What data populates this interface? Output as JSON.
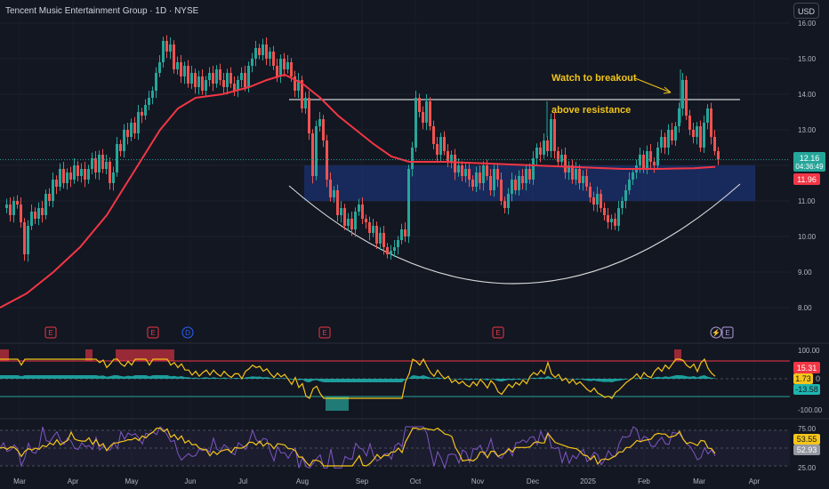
{
  "header": {
    "title": "Tencent Music Entertainment Group · 1D · NYSE",
    "currency_label": "USD"
  },
  "annotation": {
    "line1": "Watch to breakout",
    "line2": "above resistance"
  },
  "colors": {
    "background": "#131722",
    "up": "#26a69a",
    "down": "#ef5350",
    "ma": "#f23645",
    "zone": "#1e3a8a",
    "annotation": "#f0c419",
    "histogram": "#1fb5b0",
    "stoch_k": "#f5c518",
    "rsi": "#7e57c2"
  },
  "price_badges": {
    "last_price": "12.16",
    "countdown": "04:36:49",
    "ma_value": "11.96"
  },
  "oscillator": {
    "upper_level": "100.00",
    "lower_level": "-100.00",
    "badges": [
      "15.31",
      "1.73",
      "-13.58"
    ],
    "badges_axis_suffix": "0"
  },
  "rsi": {
    "upper_tick": "75.00",
    "lower_tick": "25.00",
    "badges": [
      "53.55",
      "52.93"
    ]
  },
  "chart_data": {
    "type": "candlestick",
    "title": "Tencent Music Entertainment Group · 1D · NYSE",
    "y_ticks": [
      "16.00",
      "15.00",
      "14.00",
      "13.00",
      "12.00",
      "11.00",
      "10.00",
      "9.00",
      "8.00"
    ],
    "y_tick_values": [
      16,
      15,
      14,
      13,
      12,
      11,
      10,
      9,
      8
    ],
    "x_ticks": [
      "Mar",
      "Apr",
      "May",
      "Jun",
      "Jul",
      "Aug",
      "Sep",
      "Oct",
      "Nov",
      "Dec",
      "2025",
      "Feb",
      "Mar",
      "Apr"
    ],
    "price_path": [
      [
        0,
        10.8
      ],
      [
        4,
        10.9
      ],
      [
        8,
        10.6
      ],
      [
        12,
        11.0
      ],
      [
        16,
        10.9
      ],
      [
        20,
        10.4
      ],
      [
        24,
        9.5
      ],
      [
        28,
        10.3
      ],
      [
        32,
        10.7
      ],
      [
        36,
        10.5
      ],
      [
        40,
        10.8
      ],
      [
        44,
        10.6
      ],
      [
        48,
        11.2
      ],
      [
        52,
        11.0
      ],
      [
        56,
        11.6
      ],
      [
        60,
        11.4
      ],
      [
        64,
        11.9
      ],
      [
        68,
        11.5
      ],
      [
        72,
        11.8
      ],
      [
        76,
        11.6
      ],
      [
        80,
        12.0
      ],
      [
        84,
        11.7
      ],
      [
        88,
        11.9
      ],
      [
        92,
        11.6
      ],
      [
        96,
        11.9
      ],
      [
        100,
        12.2
      ],
      [
        104,
        11.8
      ],
      [
        108,
        12.3
      ],
      [
        112,
        11.9
      ],
      [
        116,
        12.1
      ],
      [
        120,
        11.5
      ],
      [
        124,
        11.8
      ],
      [
        128,
        12.6
      ],
      [
        132,
        12.4
      ],
      [
        136,
        13.0
      ],
      [
        140,
        12.8
      ],
      [
        144,
        13.2
      ],
      [
        148,
        12.9
      ],
      [
        152,
        13.5
      ],
      [
        156,
        13.4
      ],
      [
        160,
        13.7
      ],
      [
        164,
        13.9
      ],
      [
        168,
        14.1
      ],
      [
        172,
        14.6
      ],
      [
        176,
        14.9
      ],
      [
        180,
        15.5
      ],
      [
        184,
        15.2
      ],
      [
        188,
        15.4
      ],
      [
        192,
        14.7
      ],
      [
        196,
        14.9
      ],
      [
        200,
        14.5
      ],
      [
        204,
        14.8
      ],
      [
        208,
        14.3
      ],
      [
        212,
        14.6
      ],
      [
        216,
        14.2
      ],
      [
        220,
        14.5
      ],
      [
        224,
        14.1
      ],
      [
        228,
        14.4
      ],
      [
        232,
        14.6
      ],
      [
        236,
        14.3
      ],
      [
        240,
        14.7
      ],
      [
        244,
        14.4
      ],
      [
        248,
        14.2
      ],
      [
        252,
        14.6
      ],
      [
        256,
        14.3
      ],
      [
        260,
        14.1
      ],
      [
        264,
        14.4
      ],
      [
        268,
        14.6
      ],
      [
        272,
        14.2
      ],
      [
        276,
        14.8
      ],
      [
        280,
        15.0
      ],
      [
        284,
        15.3
      ],
      [
        288,
        15.1
      ],
      [
        292,
        15.4
      ],
      [
        296,
        15.0
      ],
      [
        300,
        15.2
      ],
      [
        304,
        14.8
      ],
      [
        308,
        14.5
      ],
      [
        312,
        15.0
      ],
      [
        316,
        14.7
      ],
      [
        320,
        14.9
      ],
      [
        324,
        14.5
      ],
      [
        328,
        14.1
      ],
      [
        332,
        14.4
      ],
      [
        336,
        13.6
      ],
      [
        340,
        13.9
      ],
      [
        344,
        12.9
      ],
      [
        348,
        11.7
      ],
      [
        352,
        13.1
      ],
      [
        356,
        13.3
      ],
      [
        360,
        12.7
      ],
      [
        364,
        11.6
      ],
      [
        368,
        11.1
      ],
      [
        372,
        11.3
      ],
      [
        376,
        10.6
      ],
      [
        380,
        10.8
      ],
      [
        384,
        10.3
      ],
      [
        388,
        10.5
      ],
      [
        392,
        10.2
      ],
      [
        396,
        10.7
      ],
      [
        400,
        10.9
      ],
      [
        404,
        10.5
      ],
      [
        408,
        10.4
      ],
      [
        412,
        10.1
      ],
      [
        416,
        10.3
      ],
      [
        420,
        9.8
      ],
      [
        424,
        10.1
      ],
      [
        428,
        9.7
      ],
      [
        432,
        9.5
      ],
      [
        436,
        9.6
      ],
      [
        440,
        9.7
      ],
      [
        444,
        9.9
      ],
      [
        448,
        10.2
      ],
      [
        452,
        10.0
      ],
      [
        456,
        11.9
      ],
      [
        460,
        12.5
      ],
      [
        464,
        13.9
      ],
      [
        468,
        13.5
      ],
      [
        472,
        13.2
      ],
      [
        476,
        13.8
      ],
      [
        480,
        13.1
      ],
      [
        484,
        12.6
      ],
      [
        488,
        12.3
      ],
      [
        492,
        12.8
      ],
      [
        496,
        12.4
      ],
      [
        500,
        12.1
      ],
      [
        504,
        12.3
      ],
      [
        508,
        11.8
      ],
      [
        512,
        12.0
      ],
      [
        516,
        11.7
      ],
      [
        520,
        11.9
      ],
      [
        524,
        11.6
      ],
      [
        528,
        11.4
      ],
      [
        532,
        11.8
      ],
      [
        536,
        11.5
      ],
      [
        540,
        12.0
      ],
      [
        544,
        11.7
      ],
      [
        548,
        11.3
      ],
      [
        552,
        11.9
      ],
      [
        556,
        11.6
      ],
      [
        560,
        11.0
      ],
      [
        564,
        10.8
      ],
      [
        568,
        11.2
      ],
      [
        572,
        11.6
      ],
      [
        576,
        11.3
      ],
      [
        580,
        11.7
      ],
      [
        584,
        11.5
      ],
      [
        588,
        11.9
      ],
      [
        592,
        11.6
      ],
      [
        596,
        12.2
      ],
      [
        600,
        12.5
      ],
      [
        604,
        12.3
      ],
      [
        608,
        12.7
      ],
      [
        612,
        12.4
      ],
      [
        616,
        13.3
      ],
      [
        620,
        12.4
      ],
      [
        624,
        12.1
      ],
      [
        628,
        12.3
      ],
      [
        632,
        11.8
      ],
      [
        636,
        12.0
      ],
      [
        640,
        11.6
      ],
      [
        644,
        11.9
      ],
      [
        648,
        11.5
      ],
      [
        652,
        11.7
      ],
      [
        656,
        11.4
      ],
      [
        660,
        11.1
      ],
      [
        664,
        10.9
      ],
      [
        668,
        11.2
      ],
      [
        672,
        10.8
      ],
      [
        676,
        10.6
      ],
      [
        680,
        10.4
      ],
      [
        684,
        10.5
      ],
      [
        688,
        10.3
      ],
      [
        692,
        10.8
      ],
      [
        696,
        11.0
      ],
      [
        700,
        11.3
      ],
      [
        704,
        11.6
      ],
      [
        708,
        11.8
      ],
      [
        712,
        12.0
      ],
      [
        716,
        12.3
      ],
      [
        720,
        11.9
      ],
      [
        724,
        12.4
      ],
      [
        728,
        12.1
      ],
      [
        732,
        12.0
      ],
      [
        736,
        12.5
      ],
      [
        740,
        12.8
      ],
      [
        744,
        12.5
      ],
      [
        748,
        13.0
      ],
      [
        752,
        12.7
      ],
      [
        756,
        13.1
      ],
      [
        760,
        13.6
      ],
      [
        764,
        14.4
      ],
      [
        768,
        13.4
      ],
      [
        772,
        13.0
      ],
      [
        776,
        12.8
      ],
      [
        780,
        13.1
      ],
      [
        784,
        12.5
      ],
      [
        788,
        13.2
      ],
      [
        792,
        13.6
      ],
      [
        796,
        12.8
      ],
      [
        800,
        12.4
      ],
      [
        804,
        12.16
      ]
    ],
    "ma_path": [
      [
        0,
        8.0
      ],
      [
        30,
        8.4
      ],
      [
        60,
        9.0
      ],
      [
        90,
        9.7
      ],
      [
        120,
        10.6
      ],
      [
        150,
        11.8
      ],
      [
        180,
        13.0
      ],
      [
        200,
        13.6
      ],
      [
        220,
        13.9
      ],
      [
        250,
        14.0
      ],
      [
        280,
        14.2
      ],
      [
        300,
        14.4
      ],
      [
        320,
        14.55
      ],
      [
        340,
        14.3
      ],
      [
        360,
        13.9
      ],
      [
        380,
        13.4
      ],
      [
        400,
        13.0
      ],
      [
        420,
        12.6
      ],
      [
        440,
        12.25
      ],
      [
        460,
        12.1
      ],
      [
        500,
        12.1
      ],
      [
        550,
        12.05
      ],
      [
        600,
        12.0
      ],
      [
        650,
        11.95
      ],
      [
        700,
        11.9
      ],
      [
        740,
        11.9
      ],
      [
        780,
        11.92
      ],
      [
        804,
        11.96
      ]
    ],
    "resistance": {
      "value": 13.85,
      "x_from": 325,
      "x_to": 832
    },
    "support_zone": {
      "from": 11.0,
      "to": 12.0,
      "x_from": 342,
      "x_to": 849
    },
    "event_markers": [
      "E",
      "E",
      "D",
      "E",
      "E",
      "E"
    ],
    "oscillator_series": {
      "name": "",
      "upper": 100,
      "lower": -100
    },
    "rsi_range": [
      25,
      75
    ]
  },
  "time_axis": [
    "Mar",
    "Apr",
    "May",
    "Jun",
    "Jul",
    "Aug",
    "Sep",
    "Oct",
    "Nov",
    "Dec",
    "2025",
    "Feb",
    "Mar",
    "Apr"
  ]
}
